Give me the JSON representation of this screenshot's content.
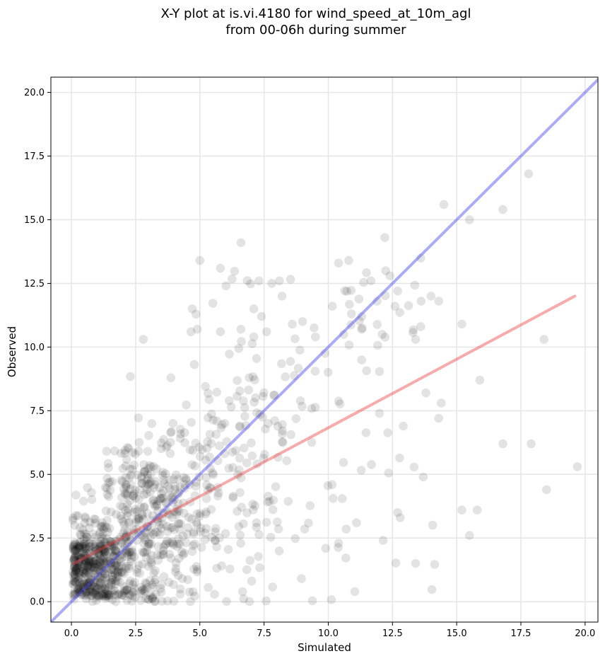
{
  "chart_data": {
    "type": "scatter",
    "title": "X-Y plot at is.vi.4180 for wind_speed_at_10m_agl",
    "subtitle": "from 00-06h during summer",
    "xlabel": "Simulated",
    "ylabel": "Observed",
    "xlim": [
      -0.8,
      20.5
    ],
    "ylim": [
      -0.8,
      20.6
    ],
    "x_ticks": [
      "0.0",
      "2.5",
      "5.0",
      "7.5",
      "10.0",
      "12.5",
      "15.0",
      "17.5",
      "20.0"
    ],
    "y_ticks": [
      "0.0",
      "2.5",
      "5.0",
      "7.5",
      "10.0",
      "12.5",
      "15.0",
      "17.5",
      "20.0"
    ],
    "grid": true,
    "colors": {
      "points": "#000000",
      "identity_line": "#4444ee",
      "fit_line": "#ee4444"
    },
    "point_count": 1100,
    "highlighted_points": [
      [
        17.8,
        16.8
      ],
      [
        16.8,
        15.4
      ],
      [
        14.5,
        15.6
      ],
      [
        15.5,
        15.0
      ],
      [
        12.2,
        14.3
      ],
      [
        6.6,
        14.1
      ],
      [
        13.6,
        13.5
      ],
      [
        5.0,
        13.4
      ],
      [
        5.8,
        13.1
      ],
      [
        10.8,
        13.4
      ],
      [
        10.4,
        13.3
      ],
      [
        12.4,
        12.8
      ],
      [
        7.3,
        12.6
      ],
      [
        7.8,
        12.5
      ],
      [
        8.1,
        12.6
      ],
      [
        12.7,
        12.2
      ],
      [
        14.0,
        12.0
      ],
      [
        14.3,
        11.8
      ],
      [
        8.2,
        12.0
      ],
      [
        11.9,
        11.8
      ],
      [
        12.6,
        11.6
      ],
      [
        4.7,
        11.5
      ],
      [
        7.1,
        11.5
      ],
      [
        10.9,
        11.3
      ],
      [
        11.3,
        11.2
      ],
      [
        7.4,
        11.2
      ],
      [
        9.0,
        11.0
      ],
      [
        15.2,
        10.9
      ],
      [
        13.6,
        10.8
      ],
      [
        8.6,
        10.9
      ],
      [
        6.6,
        10.7
      ],
      [
        4.9,
        10.7
      ],
      [
        7.6,
        10.6
      ],
      [
        11.3,
        10.7
      ],
      [
        12.1,
        10.5
      ],
      [
        5.8,
        10.6
      ],
      [
        18.4,
        10.3
      ],
      [
        13.4,
        10.3
      ],
      [
        7.1,
        10.4
      ],
      [
        9.5,
        10.4
      ],
      [
        2.8,
        10.3
      ],
      [
        10.6,
        10.5
      ],
      [
        15.9,
        8.7
      ],
      [
        13.8,
        8.2
      ],
      [
        14.4,
        7.8
      ],
      [
        14.3,
        7.2
      ],
      [
        16.8,
        6.2
      ],
      [
        17.9,
        6.2
      ],
      [
        19.7,
        5.3
      ],
      [
        18.5,
        4.4
      ],
      [
        15.8,
        3.6
      ],
      [
        15.2,
        3.6
      ],
      [
        15.5,
        2.6
      ],
      [
        13.4,
        1.5
      ],
      [
        13.7,
        4.9
      ],
      [
        12.7,
        3.5
      ],
      [
        12.8,
        3.3
      ],
      [
        11.1,
        3.1
      ],
      [
        10.4,
        2.3
      ],
      [
        9.9,
        2.1
      ]
    ],
    "series": [
      {
        "type": "line",
        "points": [
          [
            -0.8,
            -0.8
          ],
          [
            20.5,
            20.5
          ]
        ]
      },
      {
        "type": "line",
        "points": [
          [
            0.1,
            1.5
          ],
          [
            19.6,
            12.0
          ]
        ]
      }
    ]
  }
}
